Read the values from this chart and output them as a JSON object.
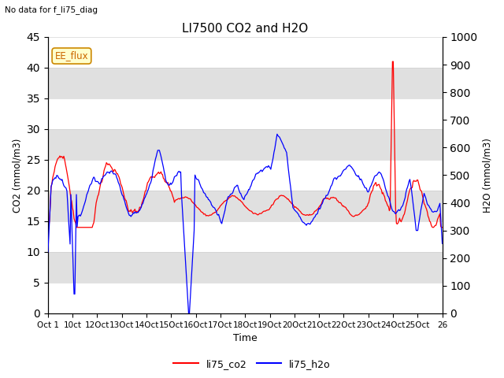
{
  "title": "LI7500 CO2 and H2O",
  "subtitle": "No data for f_li75_diag",
  "xlabel": "Time",
  "ylabel_left": "CO2 (mmol/m3)",
  "ylabel_right": "H2O (mmol/m3)",
  "ylim_left": [
    0,
    45
  ],
  "ylim_right": [
    0,
    1000
  ],
  "legend_label_co2": "li75_co2",
  "legend_label_h2o": "li75_h2o",
  "color_co2": "#ff0000",
  "color_h2o": "#0000ff",
  "annotation_text": "EE_flux",
  "background_color": "#ffffff",
  "grid_band_color": "#e0e0e0",
  "figsize": [
    6.4,
    4.8
  ],
  "dpi": 100,
  "xtick_labels": [
    "Oct 1",
    "10ct",
    "12Oct",
    "13Oct",
    "14Oct",
    "15Oct",
    "16Oct",
    "17Oct",
    "18Oct",
    "19Oct",
    "20Oct",
    "21Oct",
    "22Oct",
    "23Oct",
    "24Oct",
    "25Oct",
    "26"
  ],
  "xtick_positions": [
    0,
    1,
    2,
    3,
    4,
    5,
    6,
    7,
    8,
    9,
    10,
    11,
    12,
    13,
    14,
    15,
    16
  ]
}
